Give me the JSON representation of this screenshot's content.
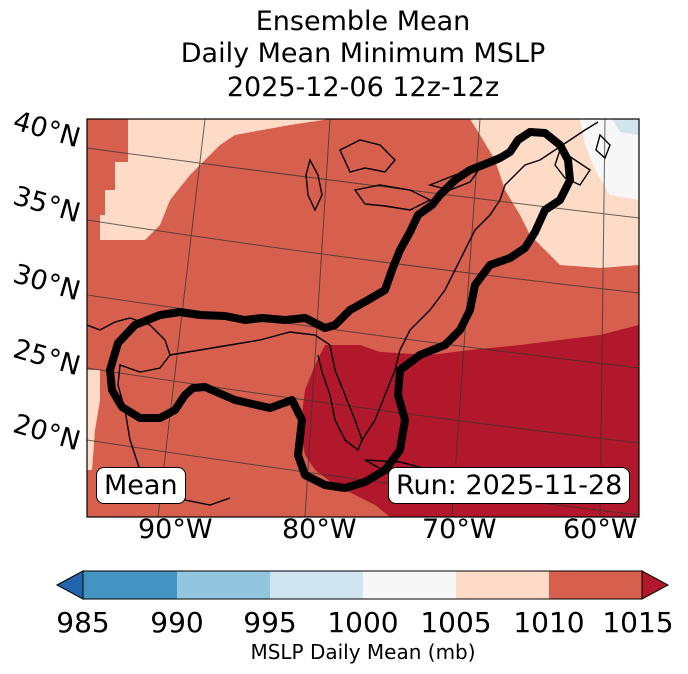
{
  "title": {
    "line1": "Ensemble Mean",
    "line2": "Daily Mean Minimum MSLP",
    "line3": "2025-12-06 12z-12z"
  },
  "map": {
    "lat_labels": [
      "40°N",
      "35°N",
      "30°N",
      "25°N",
      "20°N"
    ],
    "lon_labels": [
      "90°W",
      "80°W",
      "70°W",
      "60°W"
    ],
    "left_box": "Mean",
    "right_box": "Run: 2025-11-28"
  },
  "colorbar": {
    "ticks": [
      "985",
      "990",
      "995",
      "1000",
      "1005",
      "1010",
      "1015"
    ],
    "label": "MSLP Daily Mean (mb)",
    "bins": [
      {
        "range": "<985",
        "color": "#2166ac"
      },
      {
        "range": "985-990",
        "color": "#4393c3"
      },
      {
        "range": "990-995",
        "color": "#92c5de"
      },
      {
        "range": "995-1000",
        "color": "#d1e5f0"
      },
      {
        "range": "1000-1005",
        "color": "#f7f7f7"
      },
      {
        "range": "1005-1010",
        "color": "#fddbc7"
      },
      {
        "range": "1010-1015",
        "color": "#d6604d"
      },
      {
        "range": ">1015",
        "color": "#b2182b"
      }
    ]
  }
}
